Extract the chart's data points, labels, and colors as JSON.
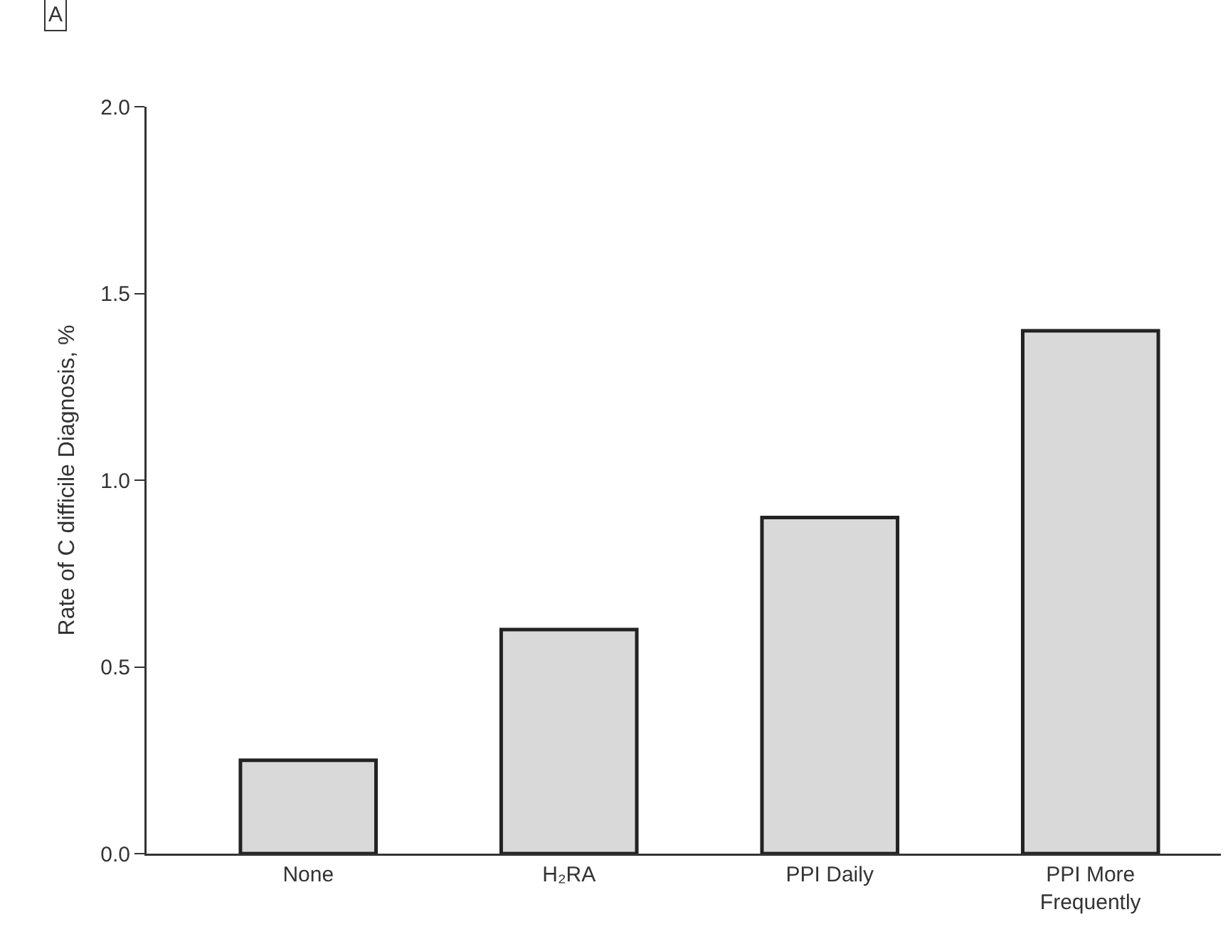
{
  "chart_data": {
    "type": "bar",
    "categories": [
      "None",
      "H₂RA",
      "PPI Daily",
      "PPI More Frequently"
    ],
    "values": [
      0.25,
      0.6,
      0.9,
      1.4
    ],
    "color": "#d9d9d9",
    "ylabel": "Rate of C difficile Diagnosis, %",
    "ylim": [
      0,
      2
    ],
    "yticks": [
      {
        "value": 0,
        "label": "0.0"
      },
      {
        "value": 0.5,
        "label": "0.5"
      },
      {
        "value": 1,
        "label": "1.0"
      },
      {
        "value": 1.5,
        "label": "1.5"
      },
      {
        "value": 2,
        "label": "2.0"
      }
    ],
    "annotations": [
      "A"
    ]
  }
}
